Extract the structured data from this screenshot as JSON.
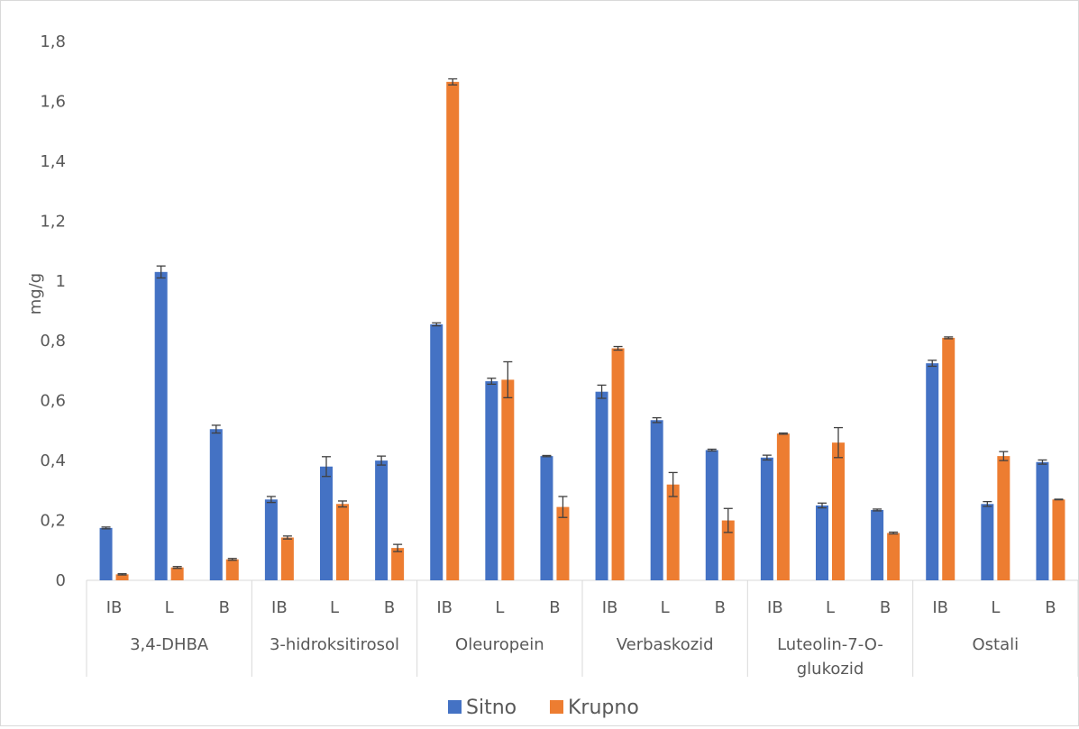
{
  "chart_data": {
    "type": "bar",
    "ylabel": "mg/g",
    "ylim": [
      0,
      1.8
    ],
    "yticks": [
      "0",
      "0,2",
      "0,4",
      "0,6",
      "0,8",
      "1",
      "1,2",
      "1,4",
      "1,6",
      "1,8"
    ],
    "grid": false,
    "legend_position": "bottom",
    "groups": [
      {
        "label": "3,4-DHBA",
        "lines": [
          "3,4-DHBA"
        ]
      },
      {
        "label": "3-hidroksitirosol",
        "lines": [
          "3-hidroksitirosol"
        ]
      },
      {
        "label": "Oleuropein",
        "lines": [
          "Oleuropein"
        ]
      },
      {
        "label": "Verbaskozid",
        "lines": [
          "Verbaskozid"
        ]
      },
      {
        "label": "Luteolin-7-O-glukozid",
        "lines": [
          "Luteolin-7-O-",
          "glukozid"
        ]
      },
      {
        "label": "Ostali",
        "lines": [
          "Ostali"
        ]
      }
    ],
    "subcategories": [
      "IB",
      "L",
      "B"
    ],
    "series": [
      {
        "name": "Sitno",
        "color": "#4472c4",
        "values": [
          0.175,
          1.03,
          0.505,
          0.27,
          0.38,
          0.4,
          0.855,
          0.665,
          0.415,
          0.63,
          0.535,
          0.435,
          0.41,
          0.25,
          0.235,
          0.725,
          0.255,
          0.395
        ],
        "errors": [
          0.003,
          0.02,
          0.013,
          0.01,
          0.033,
          0.015,
          0.005,
          0.01,
          0.002,
          0.022,
          0.008,
          0.003,
          0.008,
          0.008,
          0.003,
          0.01,
          0.008,
          0.007
        ]
      },
      {
        "name": "Krupno",
        "color": "#ed7d31",
        "values": [
          0.02,
          0.043,
          0.07,
          0.143,
          0.255,
          0.108,
          1.665,
          0.67,
          0.245,
          0.775,
          0.32,
          0.2,
          0.49,
          0.46,
          0.158,
          0.81,
          0.415,
          0.27
        ],
        "errors": [
          0.002,
          0.003,
          0.003,
          0.005,
          0.01,
          0.012,
          0.01,
          0.06,
          0.035,
          0.006,
          0.04,
          0.04,
          0.002,
          0.05,
          0.003,
          0.003,
          0.015,
          0.001
        ]
      }
    ]
  }
}
